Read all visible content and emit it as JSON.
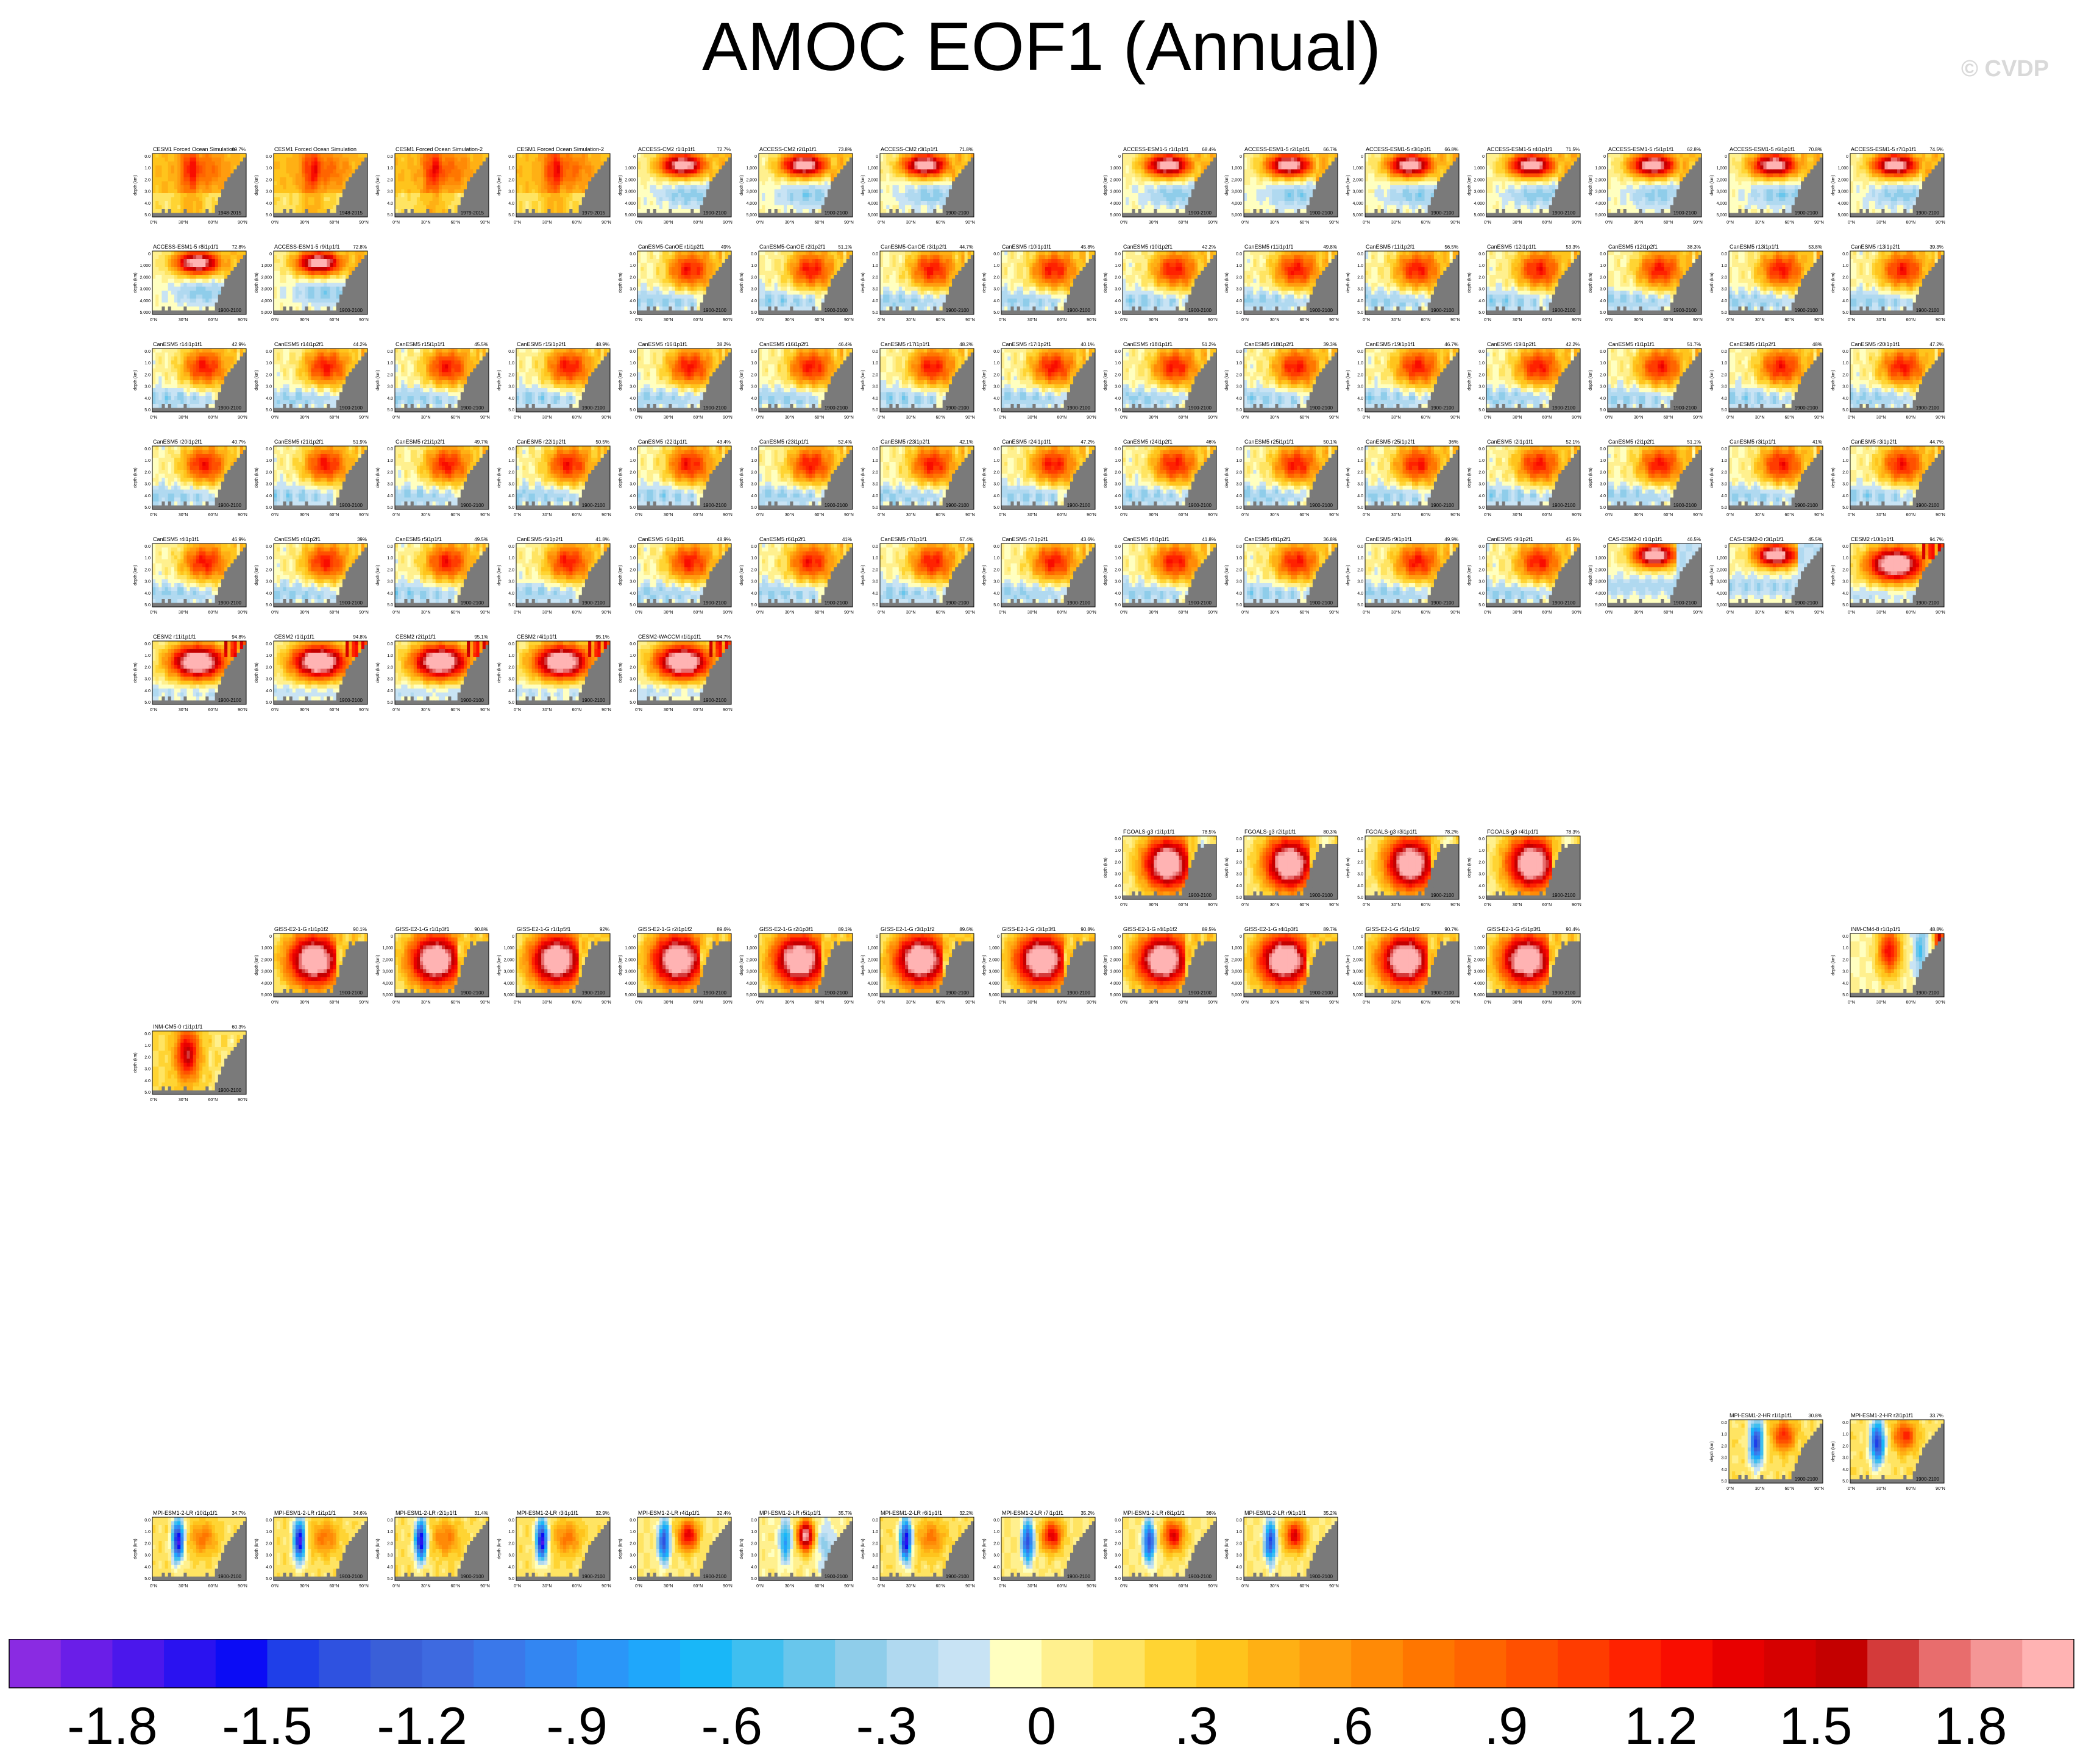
{
  "title": "AMOC EOF1 (Annual)",
  "watermark": "© CVDP",
  "chart_data": {
    "type": "heatmap",
    "title": "AMOC EOF1 (Annual)",
    "panel_axes": {
      "xlabel": "",
      "xticks": [
        "0°N",
        "30°N",
        "60°N",
        "90°N"
      ],
      "ylabel": "depth (km)",
      "yticks_km": [
        "0.0",
        "1.0",
        "2.0",
        "3.0",
        "4.0",
        "5.0"
      ],
      "yticks_m": [
        "0",
        "1,000",
        "2,000",
        "3,000",
        "4,000",
        "5,000"
      ]
    },
    "panels": [
      {
        "name": "CESM1 Forced Ocean Simulation",
        "pct": "69.7%",
        "years": "1948-2015",
        "style": "cesm_fos"
      },
      {
        "name": "CESM1 Forced Ocean Simulation",
        "pct": "",
        "years": "1948-2015",
        "style": "cesm_fos"
      },
      {
        "name": "CESM1 Forced Ocean Simulation-2",
        "pct": "",
        "years": "1979-2015",
        "style": "cesm_fos"
      },
      {
        "name": "CESM1 Forced Ocean Simulation-2",
        "pct": "",
        "years": "1979-2015",
        "style": "cesm_fos"
      },
      {
        "name": "ACCESS-CM2 r1i1p1f1",
        "pct": "72.7%",
        "years": "1900-2100",
        "style": "access"
      },
      {
        "name": "ACCESS-CM2 r2i1p1f1",
        "pct": "73.8%",
        "years": "1900-2100",
        "style": "access"
      },
      {
        "name": "ACCESS-CM2 r3i1p1f1",
        "pct": "71.8%",
        "years": "1900-2100",
        "style": "access"
      },
      {
        "name": "ACCESS-ESM1-5 r1i1p1f1",
        "pct": "68.4%",
        "years": "1900-2100",
        "style": "access"
      },
      {
        "name": "ACCESS-ESM1-5 r2i1p1f1",
        "pct": "66.7%",
        "years": "1900-2100",
        "style": "access"
      },
      {
        "name": "ACCESS-ESM1-5 r3i1p1f1",
        "pct": "66.8%",
        "years": "1900-2100",
        "style": "access"
      },
      {
        "name": "ACCESS-ESM1-5 r4i1p1f1",
        "pct": "71.5%",
        "years": "1900-2100",
        "style": "access"
      },
      {
        "name": "ACCESS-ESM1-5 r5i1p1f1",
        "pct": "62.8%",
        "years": "1900-2100",
        "style": "access"
      },
      {
        "name": "ACCESS-ESM1-5 r6i1p1f1",
        "pct": "70.8%",
        "years": "1900-2100",
        "style": "access"
      },
      {
        "name": "ACCESS-ESM1-5 r7i1p1f1",
        "pct": "74.5%",
        "years": "1900-2100",
        "style": "access"
      },
      {
        "name": "ACCESS-ESM1-5 r8i1p1f1",
        "pct": "72.8%",
        "years": "1900-2100",
        "style": "access"
      },
      {
        "name": "ACCESS-ESM1-5 r9i1p1f1",
        "pct": "72.8%",
        "years": "1900-2100",
        "style": "access"
      },
      {
        "name": "CanESM5-CanOE r1i1p2f1",
        "pct": "49%",
        "years": "1900-2100",
        "style": "canesm"
      },
      {
        "name": "CanESM5-CanOE r2i1p2f1",
        "pct": "51.1%",
        "years": "1900-2100",
        "style": "canesm"
      },
      {
        "name": "CanESM5-CanOE r3i1p2f1",
        "pct": "44.7%",
        "years": "1900-2100",
        "style": "canesm"
      },
      {
        "name": "CanESM5 r10i1p1f1",
        "pct": "45.8%",
        "years": "1900-2100",
        "style": "canesm"
      },
      {
        "name": "CanESM5 r10i1p2f1",
        "pct": "42.2%",
        "years": "1900-2100",
        "style": "canesm"
      },
      {
        "name": "CanESM5 r11i1p1f1",
        "pct": "49.8%",
        "years": "1900-2100",
        "style": "canesm"
      },
      {
        "name": "CanESM5 r11i1p2f1",
        "pct": "56.5%",
        "years": "1900-2100",
        "style": "canesm"
      },
      {
        "name": "CanESM5 r12i1p1f1",
        "pct": "53.3%",
        "years": "1900-2100",
        "style": "canesm"
      },
      {
        "name": "CanESM5 r12i1p2f1",
        "pct": "38.3%",
        "years": "1900-2100",
        "style": "canesm"
      },
      {
        "name": "CanESM5 r13i1p1f1",
        "pct": "53.8%",
        "years": "1900-2100",
        "style": "canesm"
      },
      {
        "name": "CanESM5 r13i1p2f1",
        "pct": "39.3%",
        "years": "1900-2100",
        "style": "canesm"
      },
      {
        "name": "CanESM5 r14i1p1f1",
        "pct": "42.9%",
        "years": "1900-2100",
        "style": "canesm"
      },
      {
        "name": "CanESM5 r14i1p2f1",
        "pct": "44.2%",
        "years": "1900-2100",
        "style": "canesm"
      },
      {
        "name": "CanESM5 r15i1p1f1",
        "pct": "45.5%",
        "years": "1900-2100",
        "style": "canesm"
      },
      {
        "name": "CanESM5 r15i1p2f1",
        "pct": "48.9%",
        "years": "1900-2100",
        "style": "canesm"
      },
      {
        "name": "CanESM5 r16i1p1f1",
        "pct": "38.2%",
        "years": "1900-2100",
        "style": "canesm"
      },
      {
        "name": "CanESM5 r16i1p2f1",
        "pct": "46.4%",
        "years": "1900-2100",
        "style": "canesm"
      },
      {
        "name": "CanESM5 r17i1p1f1",
        "pct": "48.2%",
        "years": "1900-2100",
        "style": "canesm"
      },
      {
        "name": "CanESM5 r17i1p2f1",
        "pct": "40.1%",
        "years": "1900-2100",
        "style": "canesm"
      },
      {
        "name": "CanESM5 r18i1p1f1",
        "pct": "51.2%",
        "years": "1900-2100",
        "style": "canesm"
      },
      {
        "name": "CanESM5 r18i1p2f1",
        "pct": "39.3%",
        "years": "1900-2100",
        "style": "canesm"
      },
      {
        "name": "CanESM5 r19i1p1f1",
        "pct": "46.7%",
        "years": "1900-2100",
        "style": "canesm"
      },
      {
        "name": "CanESM5 r19i1p2f1",
        "pct": "42.2%",
        "years": "1900-2100",
        "style": "canesm"
      },
      {
        "name": "CanESM5 r1i1p1f1",
        "pct": "51.7%",
        "years": "1900-2100",
        "style": "canesm"
      },
      {
        "name": "CanESM5 r1i1p2f1",
        "pct": "48%",
        "years": "1900-2100",
        "style": "canesm"
      },
      {
        "name": "CanESM5 r20i1p1f1",
        "pct": "47.2%",
        "years": "1900-2100",
        "style": "canesm"
      },
      {
        "name": "CanESM5 r20i1p2f1",
        "pct": "40.7%",
        "years": "1900-2100",
        "style": "canesm"
      },
      {
        "name": "CanESM5 r21i1p2f1",
        "pct": "51.9%",
        "years": "1900-2100",
        "style": "canesm"
      },
      {
        "name": "CanESM5 r21i1p2f1",
        "pct": "49.7%",
        "years": "1900-2100",
        "style": "canesm"
      },
      {
        "name": "CanESM5 r22i1p2f1",
        "pct": "50.5%",
        "years": "1900-2100",
        "style": "canesm"
      },
      {
        "name": "CanESM5 r22i1p1f1",
        "pct": "43.4%",
        "years": "1900-2100",
        "style": "canesm"
      },
      {
        "name": "CanESM5 r23i1p1f1",
        "pct": "52.4%",
        "years": "1900-2100",
        "style": "canesm"
      },
      {
        "name": "CanESM5 r23i1p2f1",
        "pct": "42.1%",
        "years": "1900-2100",
        "style": "canesm"
      },
      {
        "name": "CanESM5 r24i1p1f1",
        "pct": "47.2%",
        "years": "1900-2100",
        "style": "canesm"
      },
      {
        "name": "CanESM5 r24i1p2f1",
        "pct": "46%",
        "years": "1900-2100",
        "style": "canesm"
      },
      {
        "name": "CanESM5 r25i1p1f1",
        "pct": "50.1%",
        "years": "1900-2100",
        "style": "canesm"
      },
      {
        "name": "CanESM5 r25i1p2f1",
        "pct": "36%",
        "years": "1900-2100",
        "style": "canesm"
      },
      {
        "name": "CanESM5 r2i1p1f1",
        "pct": "52.1%",
        "years": "1900-2100",
        "style": "canesm"
      },
      {
        "name": "CanESM5 r2i1p2f1",
        "pct": "51.1%",
        "years": "1900-2100",
        "style": "canesm"
      },
      {
        "name": "CanESM5 r3i1p1f1",
        "pct": "41%",
        "years": "1900-2100",
        "style": "canesm"
      },
      {
        "name": "CanESM5 r3i1p2f1",
        "pct": "44.7%",
        "years": "1900-2100",
        "style": "canesm"
      },
      {
        "name": "CanESM5 r4i1p1f1",
        "pct": "46.9%",
        "years": "1900-2100",
        "style": "canesm"
      },
      {
        "name": "CanESM5 r4i1p2f1",
        "pct": "39%",
        "years": "1900-2100",
        "style": "canesm"
      },
      {
        "name": "CanESM5 r5i1p1f1",
        "pct": "49.5%",
        "years": "1900-2100",
        "style": "canesm"
      },
      {
        "name": "CanESM5 r5i1p2f1",
        "pct": "41.8%",
        "years": "1900-2100",
        "style": "canesm"
      },
      {
        "name": "CanESM5 r6i1p1f1",
        "pct": "48.9%",
        "years": "1900-2100",
        "style": "canesm"
      },
      {
        "name": "CanESM5 r6i1p2f1",
        "pct": "41%",
        "years": "1900-2100",
        "style": "canesm"
      },
      {
        "name": "CanESM5 r7i1p1f1",
        "pct": "57.4%",
        "years": "1900-2100",
        "style": "canesm"
      },
      {
        "name": "CanESM5 r7i1p2f1",
        "pct": "43.6%",
        "years": "1900-2100",
        "style": "canesm"
      },
      {
        "name": "CanESM5 r8i1p1f1",
        "pct": "41.8%",
        "years": "1900-2100",
        "style": "canesm"
      },
      {
        "name": "CanESM5 r8i1p2f1",
        "pct": "36.8%",
        "years": "1900-2100",
        "style": "canesm"
      },
      {
        "name": "CanESM5 r9i1p1f1",
        "pct": "49.9%",
        "years": "1900-2100",
        "style": "canesm"
      },
      {
        "name": "CanESM5 r9i1p2f1",
        "pct": "45.5%",
        "years": "1900-2100",
        "style": "canesm"
      },
      {
        "name": "CAS-ESM2-0 r1i1p1f1",
        "pct": "46.5%",
        "years": "1900-2100",
        "style": "cas"
      },
      {
        "name": "CAS-ESM2-0 r3i1p1f1",
        "pct": "45.5%",
        "years": "1900-2100",
        "style": "cas"
      },
      {
        "name": "CESM2 r10i1p1f1",
        "pct": "94.7%",
        "years": "1900-2100",
        "style": "cesm2"
      },
      {
        "name": "CESM2 r11i1p1f1",
        "pct": "94.8%",
        "years": "1900-2100",
        "style": "cesm2"
      },
      {
        "name": "CESM2 r1i1p1f1",
        "pct": "94.8%",
        "years": "1900-2100",
        "style": "cesm2"
      },
      {
        "name": "CESM2 r2i1p1f1",
        "pct": "95.1%",
        "years": "1900-2100",
        "style": "cesm2"
      },
      {
        "name": "CESM2 r4i1p1f1",
        "pct": "95.1%",
        "years": "1900-2100",
        "style": "cesm2"
      },
      {
        "name": "CESM2-WACCM r1i1p1f1",
        "pct": "94.7%",
        "years": "1900-2100",
        "style": "cesm2"
      },
      {
        "name": "FGOALS-g3 r1i1p1f1",
        "pct": "78.5%",
        "years": "1900-2100",
        "style": "fgoals"
      },
      {
        "name": "FGOALS-g3 r2i1p1f1",
        "pct": "80.3%",
        "years": "1900-2100",
        "style": "fgoals"
      },
      {
        "name": "FGOALS-g3 r3i1p1f1",
        "pct": "78.2%",
        "years": "1900-2100",
        "style": "fgoals"
      },
      {
        "name": "FGOALS-g3 r4i1p1f1",
        "pct": "78.3%",
        "years": "1900-2100",
        "style": "fgoals"
      },
      {
        "name": "GISS-E2-1-G r1i1p1f2",
        "pct": "90.1%",
        "years": "1900-2100",
        "style": "giss"
      },
      {
        "name": "GISS-E2-1-G r1i1p3f1",
        "pct": "90.8%",
        "years": "1900-2100",
        "style": "giss"
      },
      {
        "name": "GISS-E2-1-G r1i1p5f1",
        "pct": "92%",
        "years": "1900-2100",
        "style": "giss"
      },
      {
        "name": "GISS-E2-1-G r2i1p1f2",
        "pct": "89.6%",
        "years": "1900-2100",
        "style": "giss"
      },
      {
        "name": "GISS-E2-1-G r2i1p3f1",
        "pct": "89.1%",
        "years": "1900-2100",
        "style": "giss"
      },
      {
        "name": "GISS-E2-1-G r3i1p1f2",
        "pct": "89.6%",
        "years": "1900-2100",
        "style": "giss"
      },
      {
        "name": "GISS-E2-1-G r3i1p3f1",
        "pct": "90.8%",
        "years": "1900-2100",
        "style": "giss"
      },
      {
        "name": "GISS-E2-1-G r4i1p1f2",
        "pct": "89.5%",
        "years": "1900-2100",
        "style": "giss"
      },
      {
        "name": "GISS-E2-1-G r4i1p3f1",
        "pct": "89.7%",
        "years": "1900-2100",
        "style": "giss"
      },
      {
        "name": "GISS-E2-1-G r5i1p1f2",
        "pct": "90.7%",
        "years": "1900-2100",
        "style": "giss"
      },
      {
        "name": "GISS-E2-1-G r5i1p3f1",
        "pct": "90.4%",
        "years": "1900-2100",
        "style": "giss"
      },
      {
        "name": "INM-CM4-8 r1i1p1f1",
        "pct": "48.8%",
        "years": "1900-2100",
        "style": "inm48"
      },
      {
        "name": "INM-CM5-0 r1i1p1f1",
        "pct": "60.3%",
        "years": "1900-2100",
        "style": "inm50"
      },
      {
        "name": "MPI-ESM1-2-HR r1i1p1f1",
        "pct": "30.8%",
        "years": "1900-2100",
        "style": "mpihr"
      },
      {
        "name": "MPI-ESM1-2-HR r2i1p1f1",
        "pct": "33.7%",
        "years": "1900-2100",
        "style": "mpihr"
      },
      {
        "name": "MPI-ESM1-2-LR r10i1p1f1",
        "pct": "34.7%",
        "years": "1900-2100",
        "style": "mpilr"
      },
      {
        "name": "MPI-ESM1-2-LR r1i1p1f1",
        "pct": "34.6%",
        "years": "1900-2100",
        "style": "mpilr"
      },
      {
        "name": "MPI-ESM1-2-LR r2i1p1f1",
        "pct": "31.4%",
        "years": "1900-2100",
        "style": "mpilr"
      },
      {
        "name": "MPI-ESM1-2-LR r3i1p1f1",
        "pct": "32.9%",
        "years": "1900-2100",
        "style": "mpilr"
      },
      {
        "name": "MPI-ESM1-2-LR r4i1p1f1",
        "pct": "32.4%",
        "years": "1900-2100",
        "style": "mpilr2"
      },
      {
        "name": "MPI-ESM1-2-LR r5i1p1f1",
        "pct": "35.7%",
        "years": "1900-2100",
        "style": "mpilr3"
      },
      {
        "name": "MPI-ESM1-2-LR r6i1p1f1",
        "pct": "32.2%",
        "years": "1900-2100",
        "style": "mpilr"
      },
      {
        "name": "MPI-ESM1-2-LR r7i1p1f1",
        "pct": "35.2%",
        "years": "1900-2100",
        "style": "mpilr2"
      },
      {
        "name": "MPI-ESM1-2-LR r8i1p1f1",
        "pct": "36%",
        "years": "1900-2100",
        "style": "mpilr2"
      },
      {
        "name": "MPI-ESM1-2-LR r9i1p1f1",
        "pct": "35.2%",
        "years": "1900-2100",
        "style": "mpilr2"
      }
    ],
    "colorbar": {
      "levels": [
        -1.95,
        -1.85,
        -1.75,
        -1.65,
        -1.55,
        -1.45,
        -1.35,
        -1.25,
        -1.15,
        -1.05,
        -0.95,
        -0.85,
        -0.75,
        -0.65,
        -0.55,
        -0.45,
        -0.35,
        -0.25,
        -0.15,
        -0.05,
        0.05,
        0.15,
        0.25,
        0.35,
        0.45,
        0.55,
        0.65,
        0.75,
        0.85,
        0.95,
        1.05,
        1.15,
        1.25,
        1.35,
        1.45,
        1.55,
        1.65,
        1.75,
        1.85,
        1.95
      ],
      "colors": [
        "#8a2be2",
        "#6a1ee8",
        "#4b17ec",
        "#2a12f0",
        "#0b0cf5",
        "#1f3fe8",
        "#2f52e0",
        "#3a5fd8",
        "#3e6ae0",
        "#3a78ea",
        "#3386f2",
        "#2a96f8",
        "#1fa7fb",
        "#19b7f8",
        "#3fbff0",
        "#68c6ec",
        "#8fcdea",
        "#b0d9f0",
        "#c8e3f4",
        "#ffffc0",
        "#fff08e",
        "#ffe462",
        "#ffd433",
        "#ffc41c",
        "#ffb014",
        "#ff9c0e",
        "#ff8a06",
        "#ff7600",
        "#ff6400",
        "#ff5000",
        "#ff3c00",
        "#ff2200",
        "#f90d00",
        "#e80000",
        "#d60000",
        "#c40000",
        "#d43a3a",
        "#e86d6d",
        "#f49696",
        "#ffb3b3"
      ],
      "tick_labels": [
        "-1.8",
        "-1.5",
        "-1.2",
        "-.9",
        "-.6",
        "-.3",
        "0",
        ".3",
        ".6",
        ".9",
        "1.2",
        "1.5",
        "1.8"
      ],
      "tick_values": [
        -1.8,
        -1.5,
        -1.2,
        -0.9,
        -0.6,
        -0.3,
        0,
        0.3,
        0.6,
        0.9,
        1.2,
        1.5,
        1.8
      ]
    }
  }
}
